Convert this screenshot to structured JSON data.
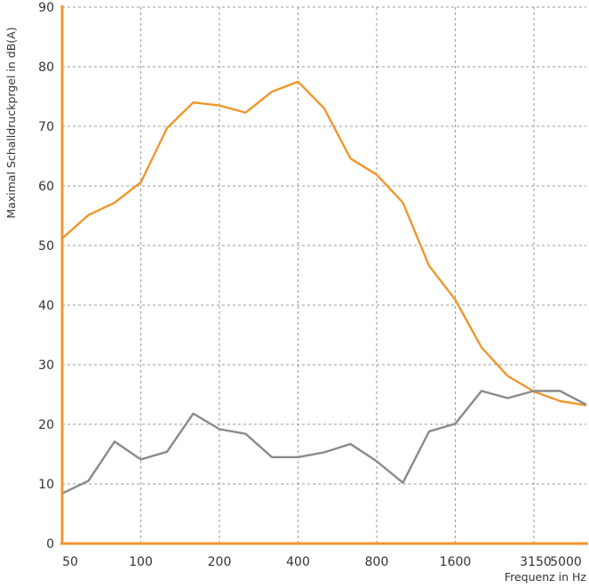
{
  "chart_data": {
    "type": "line",
    "title": "",
    "xlabel": "Frequenz in Hz",
    "ylabel": "Maximal Schalldruckprgel in dB(A)",
    "ylim": [
      0,
      90
    ],
    "grid": true,
    "x_tick_labels": [
      "50",
      "100",
      "200",
      "400",
      "800",
      "1600",
      "3150",
      "5000"
    ],
    "y_tick_labels": [
      "0",
      "10",
      "20",
      "30",
      "40",
      "50",
      "60",
      "70",
      "80",
      "90"
    ],
    "x": [
      "50",
      "63",
      "80",
      "100",
      "125",
      "160",
      "200",
      "250",
      "315",
      "400",
      "500",
      "630",
      "800",
      "1000",
      "1250",
      "1600",
      "2000",
      "2500",
      "3150",
      "4000",
      "5000"
    ],
    "series": [
      {
        "color": "#f0962d",
        "values": [
          51.2,
          55.1,
          57.2,
          60.6,
          69.7,
          74.0,
          73.5,
          72.3,
          75.8,
          77.5,
          73.0,
          64.6,
          61.9,
          57.2,
          46.6,
          40.9,
          32.9,
          28.1,
          25.5,
          23.9,
          23.2
        ]
      },
      {
        "color": "#8a8a8a",
        "values": [
          8.4,
          10.5,
          17.1,
          14.1,
          15.4,
          21.8,
          19.2,
          18.4,
          14.5,
          14.5,
          15.3,
          16.7,
          13.8,
          10.2,
          18.8,
          20.1,
          25.6,
          24.4,
          25.6,
          25.6,
          23.3
        ]
      }
    ],
    "colors": {
      "axis": "#f0962d",
      "grid": "#9a9a9a",
      "text": "#333333"
    }
  }
}
